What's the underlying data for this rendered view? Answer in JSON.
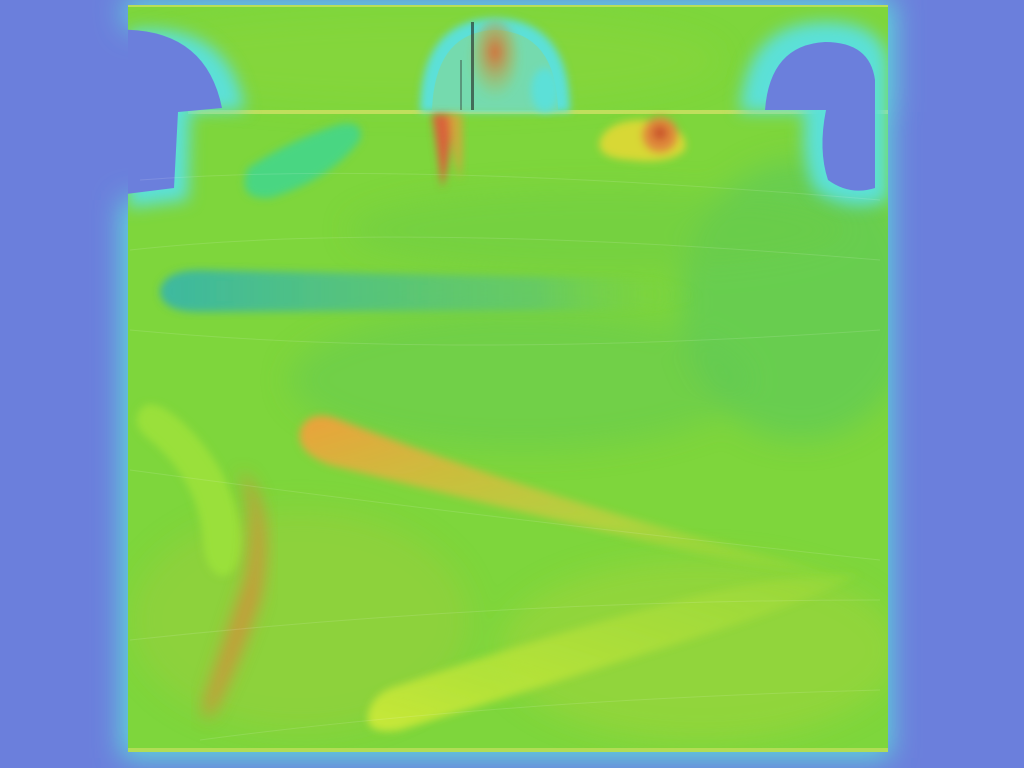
{
  "scene": {
    "colors": {
      "background": "#6b7fdc",
      "cyan": "#5ce0d8",
      "teal": "#3cc8a0",
      "green": "#7ed63c",
      "green_dark": "#52c65a",
      "yellow_green": "#a8e632",
      "yellow": "#d8d836",
      "orange": "#e89a3a",
      "red_orange": "#d8643a"
    },
    "regions": [
      "upper-channel",
      "left-bump",
      "center-bump",
      "right-bump",
      "main-chamber"
    ],
    "features": [
      "top-left-green-vortex",
      "top-center-red-plume",
      "top-right-orange-swirl",
      "left-teal-streak",
      "diagonal-orange-streak",
      "left-green-curl",
      "bottom-yellow-streak",
      "left-orange-curve"
    ]
  }
}
